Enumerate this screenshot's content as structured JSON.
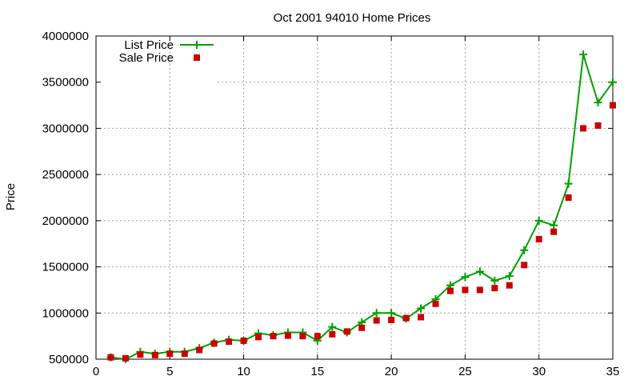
{
  "chart_data": {
    "type": "line",
    "title": "Oct 2001 94010 Home Prices",
    "xlabel": "",
    "ylabel": "Price",
    "xlim": [
      0,
      35
    ],
    "ylim": [
      500000,
      4000000
    ],
    "xticks": [
      0,
      5,
      10,
      15,
      20,
      25,
      30,
      35
    ],
    "yticks": [
      500000,
      1000000,
      1500000,
      2000000,
      2500000,
      3000000,
      3500000,
      4000000
    ],
    "grid": true,
    "legend_position": "top-left",
    "x": [
      1,
      2,
      3,
      4,
      5,
      6,
      7,
      8,
      9,
      10,
      11,
      12,
      13,
      14,
      15,
      16,
      17,
      18,
      19,
      20,
      21,
      22,
      23,
      24,
      25,
      26,
      27,
      28,
      29,
      30,
      31,
      32,
      33,
      34,
      35
    ],
    "series": [
      {
        "name": "List Price",
        "style": "linespoints",
        "marker": "plus",
        "color": "#00a000",
        "values": [
          520000,
          500000,
          580000,
          560000,
          580000,
          580000,
          620000,
          680000,
          710000,
          700000,
          780000,
          760000,
          790000,
          790000,
          700000,
          850000,
          790000,
          900000,
          1000000,
          1000000,
          940000,
          1050000,
          1150000,
          1300000,
          1390000,
          1450000,
          1350000,
          1400000,
          1680000,
          2000000,
          1950000,
          2400000,
          3800000,
          3280000,
          3500000
        ]
      },
      {
        "name": "Sale Price",
        "style": "points",
        "marker": "square",
        "color": "#cc0000",
        "values": [
          520000,
          510000,
          550000,
          545000,
          560000,
          560000,
          600000,
          670000,
          690000,
          700000,
          740000,
          750000,
          755000,
          750000,
          750000,
          770000,
          800000,
          840000,
          920000,
          925000,
          945000,
          955000,
          1100000,
          1240000,
          1250000,
          1250000,
          1270000,
          1300000,
          1520000,
          1800000,
          1880000,
          2250000,
          3000000,
          3030000,
          3250000
        ]
      }
    ]
  }
}
